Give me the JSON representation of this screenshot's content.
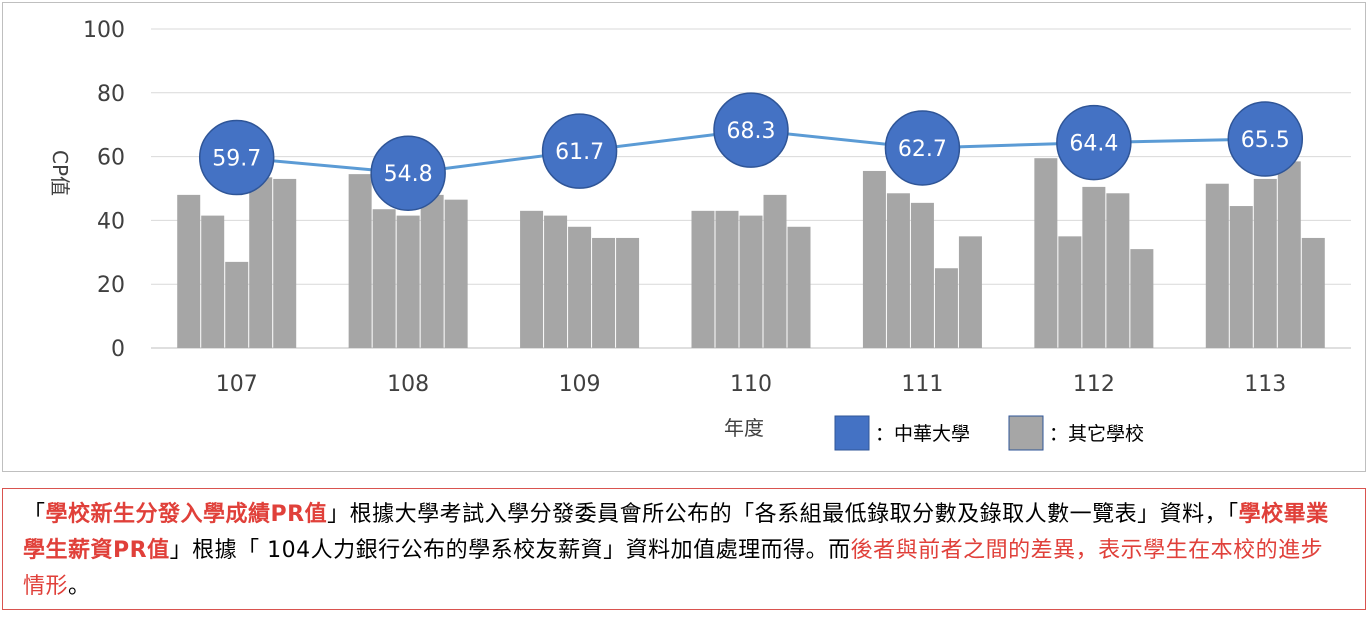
{
  "chart_data": {
    "type": "bar+line",
    "ylabel": "CP值",
    "xlabel": "年度",
    "ylim": [
      0,
      100
    ],
    "yticks": [
      "0",
      "20",
      "40",
      "60",
      "80",
      "100"
    ],
    "categories": [
      "107",
      "108",
      "109",
      "110",
      "111",
      "112",
      "113"
    ],
    "line_series": {
      "name": "中華大學",
      "color": "#4472c4",
      "values": [
        59.7,
        54.8,
        61.7,
        68.3,
        62.7,
        64.4,
        65.5
      ],
      "labels": [
        "59.7",
        "54.8",
        "61.7",
        "68.3",
        "62.7",
        "64.4",
        "65.5"
      ]
    },
    "bar_series": {
      "name": "其它學校",
      "color": "#a6a6a6",
      "groups": [
        [
          48,
          41.5,
          27,
          53.5,
          53
        ],
        [
          54.5,
          43.5,
          41.5,
          48,
          46.5
        ],
        [
          43,
          41.5,
          38,
          34.5,
          34.5
        ],
        [
          43,
          43,
          41.5,
          48,
          38
        ],
        [
          55.5,
          48.5,
          45.5,
          25,
          35
        ],
        [
          59.5,
          35,
          50.5,
          48.5,
          31
        ],
        [
          51.5,
          44.5,
          53,
          58.5,
          34.5
        ]
      ]
    },
    "legend": {
      "line_label": "：中華大學",
      "bar_label": "：其它學校"
    },
    "grid": true
  },
  "note": {
    "q_open": "「",
    "t1": "學校新生分發入學成績PR值",
    "q_close": "」",
    "t2": "根據大學考試入學分發委員會所公布的「各系組最低錄取分數及錄取人數一覽表」資料，「",
    "t3": "學校畢業學生薪資PR值",
    "t4": "」根據「 104人力銀行公布的學系校友薪資」資料加值處理而得。而",
    "t5": "後者與前者之間的差異，表示學生在本校的進步情形",
    "t6": "。"
  }
}
